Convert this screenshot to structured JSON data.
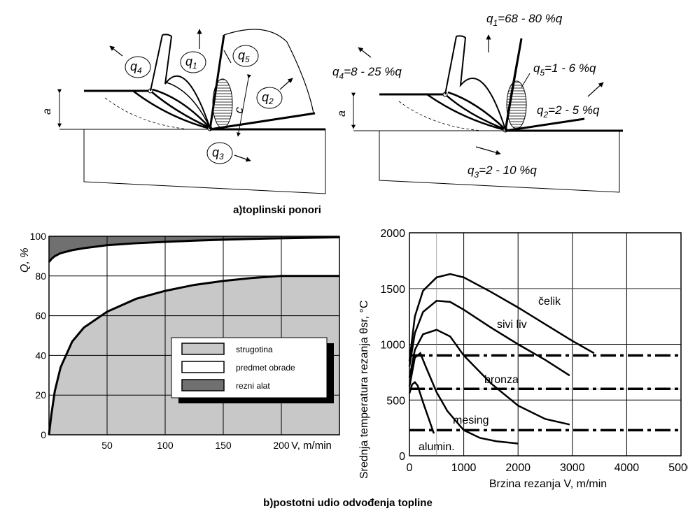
{
  "captions": {
    "a": "a)toplinski ponori",
    "b": "b)postotni udio odvođenja topline"
  },
  "diagram_left": {
    "a_label": "a",
    "c_label": "c",
    "circles": [
      "q",
      "q",
      "q",
      "q",
      "q"
    ],
    "subs": {
      "q1": "1",
      "q2": "2",
      "q3": "3",
      "q4": "4",
      "q5": "5"
    }
  },
  "diagram_right": {
    "a_label": "a",
    "q1": {
      "q": "q",
      "sub": "1",
      "rest": "=68 - 80 %q"
    },
    "q2": {
      "q": "q",
      "sub": "2",
      "rest": "=2 - 5 %q"
    },
    "q3": {
      "q": "q",
      "sub": "3",
      "rest": "=2 - 10 %q"
    },
    "q4": {
      "q": "q",
      "sub": "4",
      "rest": "=8 - 25 %q"
    },
    "q5": {
      "q": "q",
      "sub": "5",
      "rest": "=1 - 6 %q"
    }
  },
  "colors": {
    "chip": "#c8c8c8",
    "tool": "#707070",
    "workpiece": "#ffffff",
    "line": "#000000"
  },
  "chart_data": [
    {
      "type": "area",
      "ylabel": "Q, %",
      "xlabel": "V, m/min",
      "xlim": [
        0,
        250
      ],
      "ylim": [
        0,
        100
      ],
      "xticks": [
        50,
        100,
        150,
        200
      ],
      "yticks": [
        0,
        20,
        40,
        60,
        80,
        100
      ],
      "grid": true,
      "legend_position": "center-right",
      "legend": [
        "strugotina",
        "predmet obrade",
        "rezni alat"
      ],
      "series": [
        {
          "name": "strugotina",
          "x": [
            0,
            2,
            5,
            10,
            20,
            30,
            50,
            75,
            100,
            125,
            150,
            175,
            200,
            210,
            250
          ],
          "values": [
            0,
            10,
            22,
            34,
            47,
            54,
            62,
            68.5,
            72.5,
            75.5,
            77.5,
            79,
            80,
            80,
            80
          ]
        },
        {
          "name": "predmet obrade",
          "x": [
            0,
            2,
            5,
            10,
            20,
            30,
            50,
            75,
            100,
            125,
            150,
            175,
            200,
            250
          ],
          "values": [
            87,
            88.5,
            90,
            91.5,
            93,
            94,
            95.5,
            96.5,
            97.2,
            97.8,
            98.3,
            98.7,
            99,
            99.5
          ]
        },
        {
          "name": "rezni alat",
          "x": [
            0,
            250
          ],
          "values": [
            100,
            100
          ]
        }
      ]
    },
    {
      "type": "line",
      "ylabel": "Srednja temperatura rezanja θsr, °C",
      "xlabel": "Brzina rezanja V, m/min",
      "xlim": [
        0,
        5000
      ],
      "ylim": [
        0,
        2000
      ],
      "xticks": [
        0,
        1000,
        2000,
        3000,
        4000,
        5000
      ],
      "yticks": [
        0,
        500,
        1000,
        1500,
        2000
      ],
      "grid": true,
      "series": [
        {
          "name": "čelik",
          "x": [
            0,
            100,
            250,
            500,
            750,
            1000,
            1500,
            2000,
            2500,
            3000,
            3400
          ],
          "values": [
            850,
            1250,
            1480,
            1600,
            1630,
            1600,
            1470,
            1330,
            1180,
            1030,
            920
          ]
        },
        {
          "name": "sivi liv",
          "x": [
            0,
            100,
            250,
            500,
            750,
            1000,
            1500,
            2000,
            2500,
            2950
          ],
          "values": [
            800,
            1100,
            1290,
            1390,
            1380,
            1310,
            1150,
            1000,
            860,
            720
          ]
        },
        {
          "name": "bronza",
          "x": [
            0,
            100,
            250,
            500,
            750,
            1000,
            1500,
            2000,
            2500,
            2950
          ],
          "values": [
            700,
            950,
            1090,
            1130,
            1070,
            900,
            650,
            450,
            330,
            280
          ]
        },
        {
          "name": "mesing",
          "x": [
            0,
            100,
            200,
            300,
            500,
            700,
            1000,
            1300,
            1600,
            2000
          ],
          "values": [
            620,
            880,
            920,
            800,
            570,
            400,
            230,
            160,
            130,
            110
          ]
        },
        {
          "name": "alumin.",
          "x": [
            0,
            50,
            100,
            150,
            250,
            350,
            450
          ],
          "values": [
            560,
            640,
            660,
            630,
            480,
            340,
            200
          ]
        }
      ],
      "reference_lines": [
        {
          "name": "čelik",
          "value": 900
        },
        {
          "name": "bronza",
          "value": 600
        },
        {
          "name": "alumin.",
          "value": 230
        }
      ]
    }
  ]
}
